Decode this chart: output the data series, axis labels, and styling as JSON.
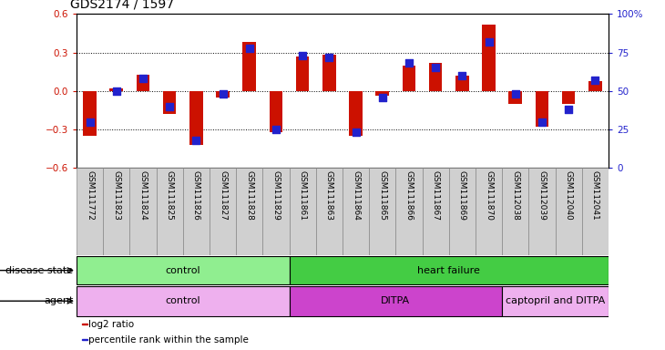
{
  "title": "GDS2174 / 1597",
  "samples": [
    "GSM111772",
    "GSM111823",
    "GSM111824",
    "GSM111825",
    "GSM111826",
    "GSM111827",
    "GSM111828",
    "GSM111829",
    "GSM111861",
    "GSM111863",
    "GSM111864",
    "GSM111865",
    "GSM111866",
    "GSM111867",
    "GSM111869",
    "GSM111870",
    "GSM112038",
    "GSM112039",
    "GSM112040",
    "GSM112041"
  ],
  "log2_ratio": [
    -0.35,
    0.02,
    0.13,
    -0.18,
    -0.42,
    -0.05,
    0.38,
    -0.32,
    0.27,
    0.28,
    -0.35,
    -0.04,
    0.2,
    0.22,
    0.12,
    0.52,
    -0.1,
    -0.28,
    -0.1,
    0.08
  ],
  "percentile_rank": [
    30,
    50,
    58,
    40,
    18,
    48,
    78,
    25,
    73,
    72,
    23,
    46,
    68,
    65,
    60,
    82,
    48,
    30,
    38,
    57
  ],
  "disease_state_groups": [
    {
      "label": "control",
      "start": 0,
      "end": 8,
      "color": "#90EE90"
    },
    {
      "label": "heart failure",
      "start": 8,
      "end": 20,
      "color": "#44CC44"
    }
  ],
  "agent_groups": [
    {
      "label": "control",
      "start": 0,
      "end": 8,
      "color": "#EEB0EE"
    },
    {
      "label": "DITPA",
      "start": 8,
      "end": 16,
      "color": "#CC44CC"
    },
    {
      "label": "captopril and DITPA",
      "start": 16,
      "end": 20,
      "color": "#EEB0EE"
    }
  ],
  "bar_color": "#CC1100",
  "dot_color": "#2222CC",
  "ylim": [
    -0.6,
    0.6
  ],
  "y_ticks_left": [
    -0.6,
    -0.3,
    0.0,
    0.3,
    0.6
  ],
  "y_ticks_right_values": [
    0,
    25,
    50,
    75,
    100
  ],
  "y_ticks_right_labels": [
    "0",
    "25",
    "50",
    "75",
    "100%"
  ],
  "hline_positions": [
    -0.3,
    0.0,
    0.3
  ],
  "legend_items": [
    {
      "label": "log2 ratio",
      "color": "#CC1100"
    },
    {
      "label": "percentile rank within the sample",
      "color": "#2222CC"
    }
  ],
  "background_color": "#ffffff",
  "bar_width": 0.5,
  "dot_size": 28,
  "xtick_box_color": "#d0d0d0",
  "xtick_box_edge": "#888888"
}
